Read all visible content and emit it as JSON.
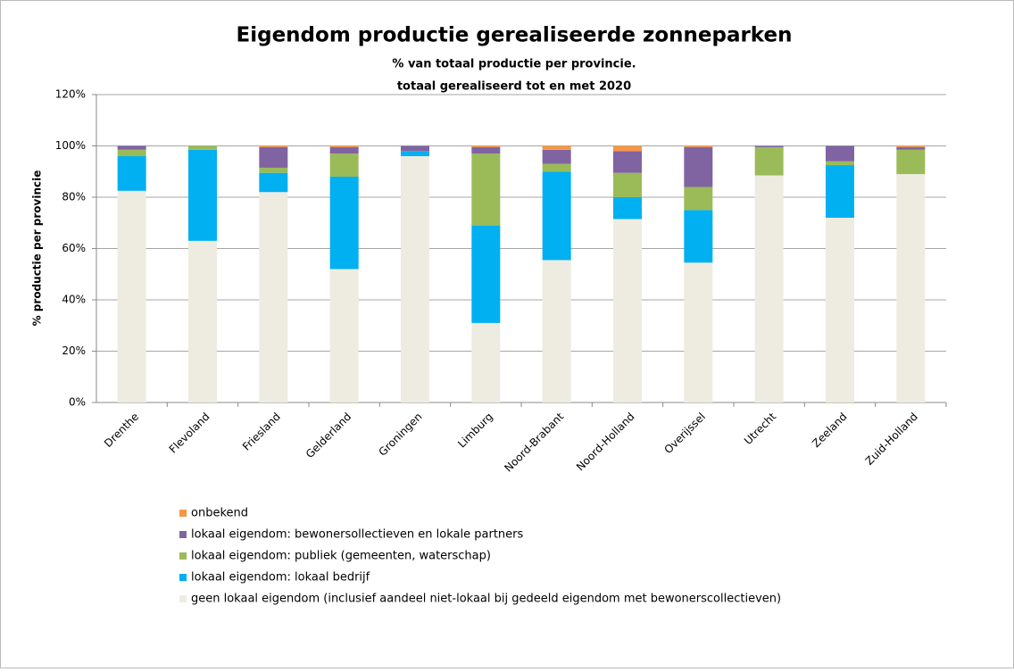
{
  "chart_data": {
    "type": "stacked_bar",
    "title": "Eigendom productie gerealiseerde zonneparken",
    "subtitle": [
      "% van totaal productie per provincie.",
      "totaal gerealiseerd tot en met 2020"
    ],
    "y_label": "% productie per provincie",
    "categories": [
      "Drenthe",
      "Flevoland",
      "Friesland",
      "Gelderland",
      "Groningen",
      "Limburg",
      "Noord-Brabant",
      "Noord-Holland",
      "Overijssel",
      "Utrecht",
      "Zeeland",
      "Zuid-Holland"
    ],
    "series": [
      {
        "name": "geen lokaal eigendom (inclusief aandeel niet-lokaal bij gedeeld eigendom met bewonerscollectieven)",
        "color": "#eeece1",
        "values": [
          82.5,
          63,
          82,
          52,
          96,
          31,
          55.5,
          71.5,
          54.5,
          88.5,
          72,
          89
        ]
      },
      {
        "name": "lokaal eigendom: lokaal bedrijf",
        "color": "#00b0f0",
        "values": [
          13.5,
          35.5,
          7.5,
          36,
          2,
          38,
          34.5,
          8.5,
          20.5,
          0,
          20.5,
          0
        ]
      },
      {
        "name": "lokaal eigendom: publiek (gemeenten, waterschap)",
        "color": "#9bbb59",
        "values": [
          2.5,
          1.5,
          2,
          9,
          0,
          28,
          3,
          9.5,
          9,
          11,
          1.5,
          9.5
        ]
      },
      {
        "name": "lokaal eigendom: bewonersollectieven en lokale partners",
        "color": "#8064a2",
        "values": [
          1.5,
          0,
          8,
          2.5,
          2,
          2.5,
          5.5,
          8.5,
          15.5,
          0.5,
          6,
          1
        ]
      },
      {
        "name": "onbekend",
        "color": "#f79646",
        "values": [
          0,
          0,
          0.5,
          0.5,
          0,
          0.5,
          1.5,
          2,
          0.5,
          0,
          0,
          0.5
        ]
      }
    ],
    "ylim": [
      0,
      120
    ],
    "yticks": [
      {
        "value": 0,
        "label": "0%"
      },
      {
        "value": 20,
        "label": "20%"
      },
      {
        "value": 40,
        "label": "40%"
      },
      {
        "value": 60,
        "label": "60%"
      },
      {
        "value": 80,
        "label": "80%"
      },
      {
        "value": 100,
        "label": "100%"
      },
      {
        "value": 120,
        "label": "120%"
      }
    ],
    "grid": true
  }
}
